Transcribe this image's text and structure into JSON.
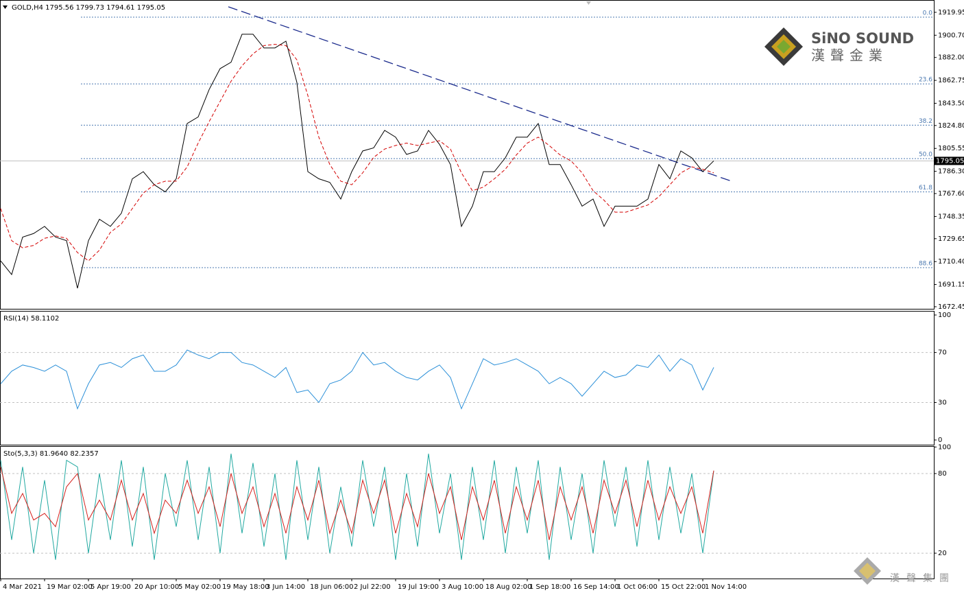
{
  "chart_data": [
    {
      "type": "line",
      "title": "GOLD,H4  1795.56 1799.73 1794.61 1795.05",
      "ylim": [
        1670.7,
        1930.3
      ],
      "yticks": [
        {
          "value": 1919.95,
          "label": "1919.95"
        },
        {
          "value": 1900.7,
          "label": "1900.70"
        },
        {
          "value": 1882.0,
          "label": "1882.00"
        },
        {
          "value": 1862.75,
          "label": "1862.75"
        },
        {
          "value": 1843.5,
          "label": "1843.50"
        },
        {
          "value": 1824.8,
          "label": "1824.80"
        },
        {
          "value": 1805.55,
          "label": "1805.55"
        },
        {
          "value": 1786.3,
          "label": "1786.30"
        },
        {
          "value": 1767.6,
          "label": "1767.60"
        },
        {
          "value": 1748.35,
          "label": "1748.35"
        },
        {
          "value": 1729.65,
          "label": "1729.65"
        },
        {
          "value": 1710.4,
          "label": "1710.40"
        },
        {
          "value": 1691.15,
          "label": "1691.15"
        },
        {
          "value": 1672.45,
          "label": "1672.45"
        }
      ],
      "series": [
        {
          "name": "Close",
          "color": "#000000",
          "values": [
            1711,
            1699.5,
            1731,
            1734,
            1740,
            1731,
            1728,
            1688,
            1728,
            1746,
            1740,
            1751,
            1780,
            1786,
            1775,
            1769,
            1780,
            1826.5,
            1832,
            1855,
            1872.6,
            1878,
            1901.5,
            1901.5,
            1890,
            1890,
            1895.7,
            1861,
            1786,
            1780,
            1777,
            1763,
            1786,
            1803.4,
            1806,
            1820.7,
            1815,
            1800.5,
            1803.4,
            1820.7,
            1809,
            1792,
            1740,
            1757,
            1786,
            1786,
            1797.6,
            1815,
            1815,
            1826.5,
            1792,
            1792,
            1775,
            1757,
            1763,
            1740,
            1757,
            1757,
            1757,
            1763,
            1792,
            1780,
            1803.4,
            1797.6,
            1786,
            1795.05
          ]
        },
        {
          "name": "MA",
          "color": "#d40000",
          "dashed": true,
          "values": [
            1755,
            1728,
            1722,
            1724,
            1730,
            1732,
            1730,
            1718,
            1711,
            1720,
            1735,
            1742,
            1755,
            1768,
            1775,
            1778,
            1778,
            1790,
            1810,
            1828,
            1845,
            1862,
            1875,
            1885,
            1892,
            1893,
            1892,
            1880,
            1850,
            1815,
            1792,
            1778,
            1775,
            1785,
            1798,
            1805,
            1808,
            1810,
            1808,
            1810,
            1812,
            1805,
            1785,
            1770,
            1773,
            1780,
            1788,
            1800,
            1810,
            1815,
            1808,
            1800,
            1795,
            1785,
            1770,
            1762,
            1752,
            1752,
            1755,
            1758,
            1765,
            1775,
            1785,
            1790,
            1788,
            1785
          ]
        }
      ],
      "fib_levels": [
        {
          "label": "0.0",
          "value": 1915.9
        },
        {
          "label": "23.6",
          "value": 1859.8
        },
        {
          "label": "38.2",
          "value": 1825.1
        },
        {
          "label": "50.0",
          "value": 1797.0
        },
        {
          "label": "61.8",
          "value": 1769.0
        },
        {
          "label": "88.6",
          "value": 1705.3
        }
      ],
      "fib_color": "#4a78b0",
      "current_price": {
        "value": 1795.05,
        "label": "1795.05"
      },
      "trendline": {
        "color": "#1a2a8c",
        "x": [
          20.75,
          66.8
        ],
        "values": [
          1924.6,
          1777.4
        ]
      }
    },
    {
      "type": "line",
      "title": "RSI(14) 58.1102",
      "ylim": [
        -3.8,
        103.3
      ],
      "yticks": [
        0,
        30,
        70,
        100
      ],
      "levels": [
        30,
        70
      ],
      "series": [
        {
          "name": "RSI",
          "color": "#2a8fd8",
          "values": [
            45,
            55,
            60,
            58,
            55,
            60,
            55,
            25,
            45,
            60,
            62,
            58,
            65,
            68,
            55,
            55,
            60,
            72,
            68,
            65,
            70,
            70,
            62,
            60,
            55,
            50,
            58,
            38,
            40,
            30,
            45,
            48,
            55,
            70,
            60,
            62,
            55,
            50,
            48,
            55,
            60,
            50,
            25,
            45,
            65,
            60,
            62,
            65,
            60,
            55,
            45,
            50,
            45,
            35,
            45,
            55,
            50,
            52,
            60,
            58,
            68,
            55,
            65,
            60,
            40,
            58.1
          ]
        }
      ]
    },
    {
      "type": "line",
      "title": "Sto(5,3,3) 81.9640 82.2357",
      "ylim": [
        0.9,
        100.7
      ],
      "yticks": [
        20,
        80,
        100
      ],
      "levels": [
        20,
        80
      ],
      "series": [
        {
          "name": "Main",
          "color": "#20a8a0",
          "values": [
            90,
            30,
            85,
            20,
            75,
            15,
            90,
            85,
            20,
            80,
            30,
            90,
            25,
            85,
            15,
            80,
            40,
            90,
            30,
            85,
            20,
            95,
            35,
            88,
            25,
            80,
            15,
            90,
            30,
            85,
            20,
            70,
            25,
            90,
            40,
            85,
            15,
            80,
            25,
            95,
            35,
            80,
            15,
            85,
            30,
            90,
            20,
            85,
            35,
            90,
            15,
            85,
            30,
            80,
            20,
            90,
            40,
            85,
            25,
            90,
            30,
            85,
            35,
            80,
            20,
            81.964
          ]
        },
        {
          "name": "Signal",
          "color": "#d4201c",
          "values": [
            85,
            50,
            65,
            45,
            50,
            40,
            70,
            80,
            45,
            60,
            45,
            75,
            45,
            65,
            35,
            60,
            50,
            75,
            50,
            70,
            40,
            80,
            50,
            70,
            40,
            65,
            35,
            70,
            45,
            75,
            35,
            60,
            35,
            75,
            50,
            75,
            35,
            65,
            40,
            80,
            50,
            70,
            30,
            70,
            45,
            75,
            35,
            70,
            45,
            75,
            30,
            70,
            45,
            70,
            35,
            75,
            50,
            75,
            40,
            75,
            45,
            70,
            50,
            70,
            35,
            82.2357
          ]
        }
      ],
      "categories": [
        "4 Mar 2021",
        null,
        null,
        null,
        "19 Mar 02:00",
        null,
        null,
        null,
        "5 Apr 19:00",
        null,
        null,
        null,
        "20 Apr 10:00",
        null,
        null,
        null,
        "5 May 02:00",
        null,
        null,
        null,
        "19 May 18:00",
        null,
        null,
        null,
        "3 Jun 14:00",
        null,
        null,
        null,
        "18 Jun 06:00",
        null,
        null,
        null,
        "2 Jul 22:00",
        null,
        null,
        null,
        "19 Jul 19:00",
        null,
        null,
        null,
        "3 Aug 10:00",
        null,
        null,
        null,
        "18 Aug 02:00",
        null,
        null,
        null,
        "1 Sep 18:00",
        null,
        null,
        null,
        "16 Sep 14:00",
        null,
        null,
        null,
        "1 Oct 06:00",
        null,
        null,
        null,
        "15 Oct 22:00",
        null,
        null,
        null,
        "1 Nov 14:00",
        null
      ]
    }
  ],
  "logo": {
    "name": "SiNO SOUND",
    "chinese": "漢聲金業"
  },
  "footer_logo": "漢聲集團"
}
